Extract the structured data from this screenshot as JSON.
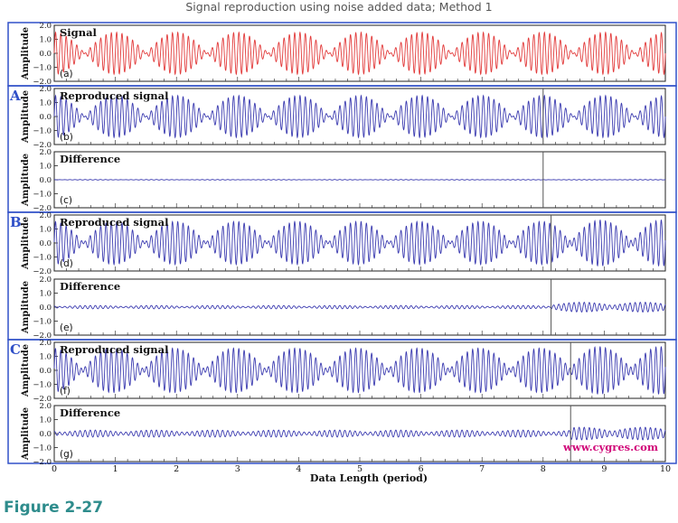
{
  "page_title": "Signal reproduction using noise added data; Method 1",
  "caption": "Figure 2-27",
  "watermark": "www.cygres.com",
  "colors": {
    "signal": "#e23a3a",
    "reproduced": "#3b3bb0",
    "difference": "#3b3bb0",
    "frame": "#3050c8",
    "divider": "#555555",
    "watermark": "#d10a7a"
  },
  "chart_data": {
    "type": "line",
    "xlabel": "Data Length (period)",
    "xlim": [
      0,
      10
    ],
    "x_ticks": [
      "0",
      "1",
      "2",
      "3",
      "4",
      "5",
      "6",
      "7",
      "8",
      "9",
      "10"
    ],
    "ylabel": "Amplitude",
    "ylim": [
      -2.0,
      2.0
    ],
    "y_ticks": [
      "2.0",
      "1.0",
      "0.0",
      "−1.0",
      "−2.0"
    ],
    "carrier_cycles_per_period": 12,
    "signal_model": "y = 0.75*sin(2π·12x) + 0.75*sin(2π·11x)  (beat envelope, peak ≈ 1.5)",
    "groups": [
      {
        "id": "A",
        "label": "A",
        "divider_x": 8.0
      },
      {
        "id": "B",
        "label": "B",
        "divider_x": 8.13
      },
      {
        "id": "C",
        "label": "C",
        "divider_x": 8.45
      }
    ],
    "panels": [
      {
        "label": "Signal",
        "tag": "(a)",
        "group": "",
        "kind": "signal",
        "error_after_divider": 0
      },
      {
        "label": "Reproduced signal",
        "tag": "(b)",
        "group": "A",
        "kind": "reproduced",
        "error_before_divider": 0.0,
        "error_after_divider": 0.0
      },
      {
        "label": "Difference",
        "tag": "(c)",
        "group": "A",
        "kind": "difference",
        "error_before_divider": 0.02,
        "error_after_divider": 0.02
      },
      {
        "label": "Reproduced signal",
        "tag": "(d)",
        "group": "B",
        "kind": "reproduced",
        "error_before_divider": 0.12,
        "error_after_divider": 0.35
      },
      {
        "label": "Difference",
        "tag": "(e)",
        "group": "B",
        "kind": "difference",
        "error_before_divider": 0.12,
        "error_after_divider": 0.35
      },
      {
        "label": "Reproduced signal",
        "tag": "(f)",
        "group": "C",
        "kind": "reproduced",
        "error_before_divider": 0.25,
        "error_after_divider": 0.45
      },
      {
        "label": "Difference",
        "tag": "(g)",
        "group": "C",
        "kind": "difference",
        "error_before_divider": 0.25,
        "error_after_divider": 0.45
      }
    ]
  }
}
